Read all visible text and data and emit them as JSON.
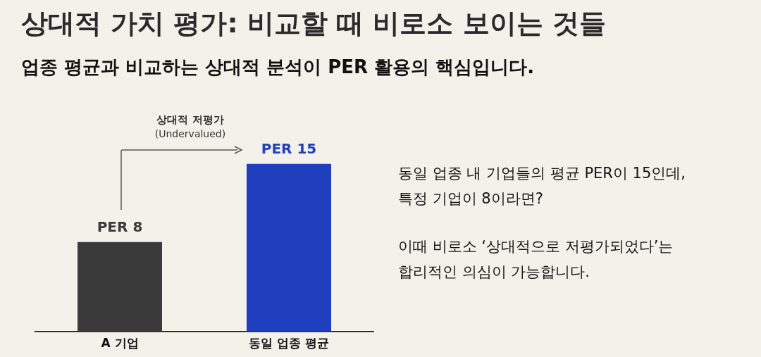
{
  "chart_data": {
    "type": "bar",
    "title": "상대적 가치 평가: 비교할 때 비로소 보이는 것들",
    "subtitle": "업종 평균과 비교하는 상대적 분석이 PER 활용의 핵심입니다.",
    "categories": [
      "A 기업",
      "동일 업종 평균"
    ],
    "values": [
      8,
      15
    ],
    "colors": [
      "#3a3a3a",
      "#1f3fbf"
    ],
    "value_labels": [
      "PER 8",
      "PER 15"
    ],
    "tick_labels": "x",
    "grid": false,
    "legend": false,
    "annotations": [
      "상대적 저평가",
      "(Undervalued)",
      "동일 업종 내 기업들의 평균 PER이 15인데,",
      "특정 기업이 8이라면?",
      "이때 비로소 ‘상대적으로 저평가되었다’는",
      "합리적인 의심이 가능합니다."
    ]
  }
}
